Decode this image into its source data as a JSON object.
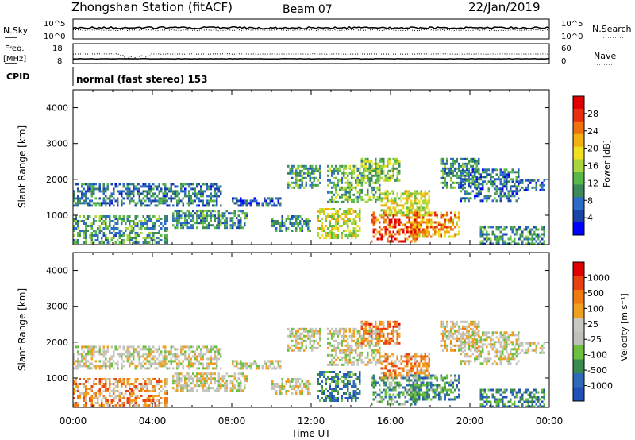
{
  "header": {
    "station": "Zhongshan Station (fitACF)",
    "beam": "Beam 07",
    "date": "22/Jan/2019"
  },
  "summary_panels": {
    "nsky_label": "N.Sky",
    "nsky_ticks": [
      "10^5",
      "10^0"
    ],
    "nsearch_label": "N.Search",
    "nsearch_ticks": [
      "10^5",
      "10^0"
    ],
    "freq_label_1": "Freq.",
    "freq_label_2": "[MHz]",
    "freq_ticks": [
      "18",
      "8"
    ],
    "nave_label": "Nave",
    "nave_ticks": [
      "60",
      "0"
    ],
    "cpid_label": "CPID",
    "cpid_value": "normal (fast stereo) 153"
  },
  "axes": {
    "ylabel": "Slant Range [km]",
    "xlabel": "Time UT",
    "yticks": [
      "4000",
      "3000",
      "2000",
      "1000"
    ],
    "xticks": [
      "00:00",
      "04:00",
      "08:00",
      "12:00",
      "16:00",
      "20:00",
      "00:00"
    ]
  },
  "colors": {
    "power": [
      "#0000ff",
      "#1a44a8",
      "#2b6cc8",
      "#3c8a5a",
      "#58b848",
      "#a8d43c",
      "#f0e020",
      "#f0b010",
      "#f07010",
      "#e83010",
      "#e00000"
    ],
    "velocity": [
      "#2050b8",
      "#2f6ab8",
      "#3a8a50",
      "#6cc040",
      "#c0c0b8",
      "#c8c8c0",
      "#f0a020",
      "#f07a10",
      "#e84010",
      "#e00000"
    ]
  },
  "chart_data": [
    {
      "type": "heatmap",
      "name": "power",
      "colorbar_label": "Power [dB]",
      "colorbar_ticks": [
        "28",
        "24",
        "20",
        "16",
        "12",
        "8",
        "4"
      ],
      "xlim_hours": [
        0,
        24
      ],
      "ylim_km": [
        180,
        4500
      ],
      "regions": [
        {
          "t0": 0.0,
          "t1": 7.5,
          "r0": 1250,
          "r1": 1900,
          "level": 0.25
        },
        {
          "t0": 0.0,
          "t1": 4.8,
          "r0": 220,
          "r1": 1000,
          "level": 0.35
        },
        {
          "t0": 5.0,
          "t1": 8.8,
          "r0": 650,
          "r1": 1150,
          "level": 0.3
        },
        {
          "t0": 8.0,
          "t1": 10.5,
          "r0": 1250,
          "r1": 1500,
          "level": 0.2
        },
        {
          "t0": 10.0,
          "t1": 12.0,
          "r0": 600,
          "r1": 1000,
          "level": 0.3
        },
        {
          "t0": 10.8,
          "t1": 12.5,
          "r0": 1800,
          "r1": 2400,
          "level": 0.35
        },
        {
          "t0": 12.3,
          "t1": 14.5,
          "r0": 400,
          "r1": 1200,
          "level": 0.55
        },
        {
          "t0": 12.8,
          "t1": 15.5,
          "r0": 1400,
          "r1": 2400,
          "level": 0.4
        },
        {
          "t0": 14.5,
          "t1": 16.5,
          "r0": 2000,
          "r1": 2600,
          "level": 0.45
        },
        {
          "t0": 15.0,
          "t1": 17.5,
          "r0": 300,
          "r1": 1100,
          "level": 0.85
        },
        {
          "t0": 15.5,
          "t1": 18.0,
          "r0": 1000,
          "r1": 1700,
          "level": 0.55
        },
        {
          "t0": 17.0,
          "t1": 19.5,
          "r0": 400,
          "r1": 1100,
          "level": 0.7
        },
        {
          "t0": 18.5,
          "t1": 20.5,
          "r0": 1800,
          "r1": 2600,
          "level": 0.3
        },
        {
          "t0": 19.5,
          "t1": 22.5,
          "r0": 1400,
          "r1": 2300,
          "level": 0.25
        },
        {
          "t0": 20.5,
          "t1": 23.8,
          "r0": 200,
          "r1": 700,
          "level": 0.3
        },
        {
          "t0": 22.5,
          "t1": 23.8,
          "r0": 1700,
          "r1": 2000,
          "level": 0.2
        }
      ]
    },
    {
      "type": "heatmap",
      "name": "velocity",
      "colorbar_label": "Velocity [m s⁻¹]",
      "colorbar_ticks": [
        "1000",
        "500",
        "100",
        "25",
        "-25",
        "-100",
        "-500",
        "-1000"
      ],
      "xlim_hours": [
        0,
        24
      ],
      "ylim_km": [
        180,
        4500
      ],
      "regions": [
        {
          "t0": 0.0,
          "t1": 7.5,
          "r0": 1250,
          "r1": 1900,
          "level": 0.5
        },
        {
          "t0": 0.0,
          "t1": 4.8,
          "r0": 220,
          "r1": 1000,
          "level": 0.7
        },
        {
          "t0": 5.0,
          "t1": 8.8,
          "r0": 650,
          "r1": 1150,
          "level": 0.5
        },
        {
          "t0": 8.0,
          "t1": 10.5,
          "r0": 1250,
          "r1": 1500,
          "level": 0.5
        },
        {
          "t0": 10.0,
          "t1": 12.0,
          "r0": 600,
          "r1": 1000,
          "level": 0.5
        },
        {
          "t0": 10.8,
          "t1": 12.5,
          "r0": 1800,
          "r1": 2400,
          "level": 0.5
        },
        {
          "t0": 12.3,
          "t1": 14.5,
          "r0": 400,
          "r1": 1200,
          "level": 0.2
        },
        {
          "t0": 12.8,
          "t1": 15.5,
          "r0": 1400,
          "r1": 2400,
          "level": 0.5
        },
        {
          "t0": 14.5,
          "t1": 16.5,
          "r0": 2000,
          "r1": 2600,
          "level": 0.75
        },
        {
          "t0": 15.0,
          "t1": 17.5,
          "r0": 300,
          "r1": 1100,
          "level": 0.3
        },
        {
          "t0": 15.5,
          "t1": 18.0,
          "r0": 1000,
          "r1": 1700,
          "level": 0.7
        },
        {
          "t0": 17.0,
          "t1": 19.5,
          "r0": 400,
          "r1": 1100,
          "level": 0.25
        },
        {
          "t0": 18.5,
          "t1": 20.5,
          "r0": 1800,
          "r1": 2600,
          "level": 0.55
        },
        {
          "t0": 19.5,
          "t1": 22.5,
          "r0": 1400,
          "r1": 2300,
          "level": 0.5
        },
        {
          "t0": 20.5,
          "t1": 23.8,
          "r0": 200,
          "r1": 700,
          "level": 0.2
        },
        {
          "t0": 22.5,
          "t1": 23.8,
          "r0": 1700,
          "r1": 2000,
          "level": 0.5
        }
      ]
    }
  ]
}
